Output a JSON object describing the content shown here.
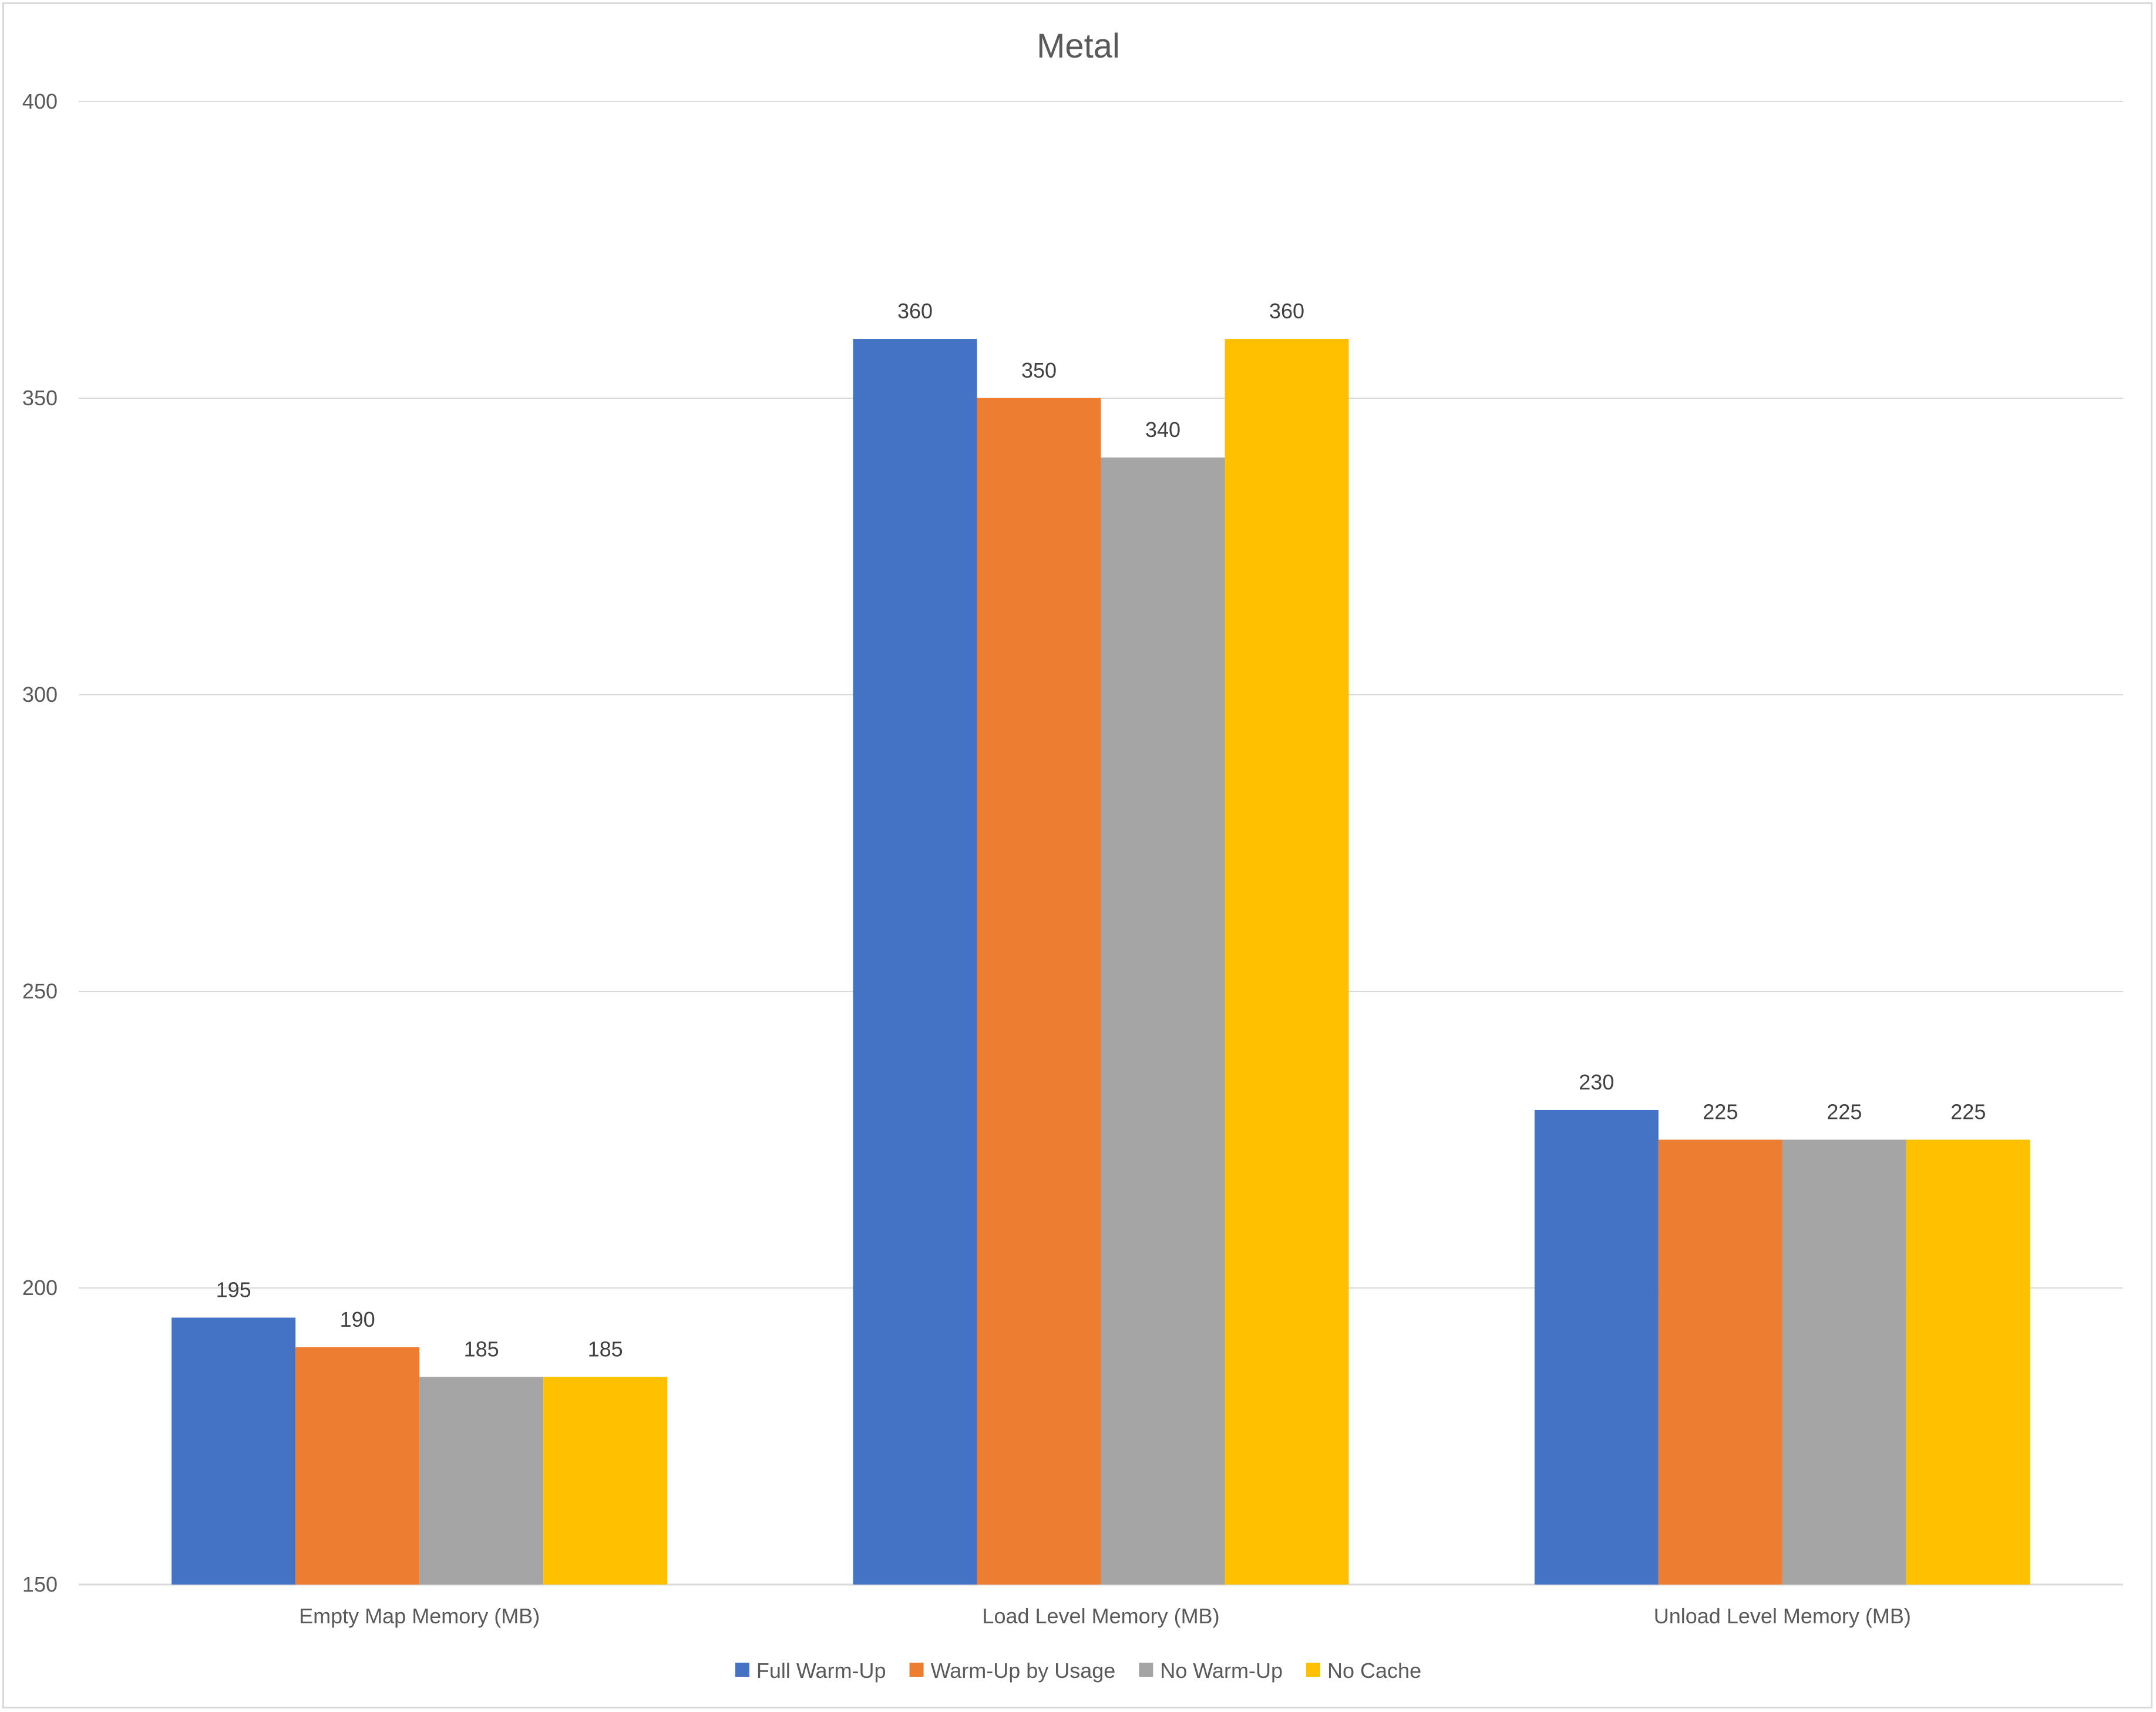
{
  "chart_data": {
    "type": "bar",
    "title": "Metal",
    "categories": [
      "Empty Map Memory (MB)",
      "Load Level Memory (MB)",
      "Unload Level Memory (MB)"
    ],
    "series": [
      {
        "name": "Full Warm-Up",
        "values": [
          195,
          360,
          230
        ],
        "color": "#4472C4"
      },
      {
        "name": "Warm-Up by Usage",
        "values": [
          190,
          350,
          225
        ],
        "color": "#ED7D31"
      },
      {
        "name": "No Warm-Up",
        "values": [
          185,
          340,
          225
        ],
        "color": "#A5A5A5"
      },
      {
        "name": "No Cache",
        "values": [
          185,
          360,
          225
        ],
        "color": "#FFC000"
      }
    ],
    "ylim": [
      150,
      400
    ],
    "yticks": [
      150,
      200,
      250,
      300,
      350,
      400
    ],
    "grid": true,
    "legend": "bottom",
    "data_labels": true
  }
}
